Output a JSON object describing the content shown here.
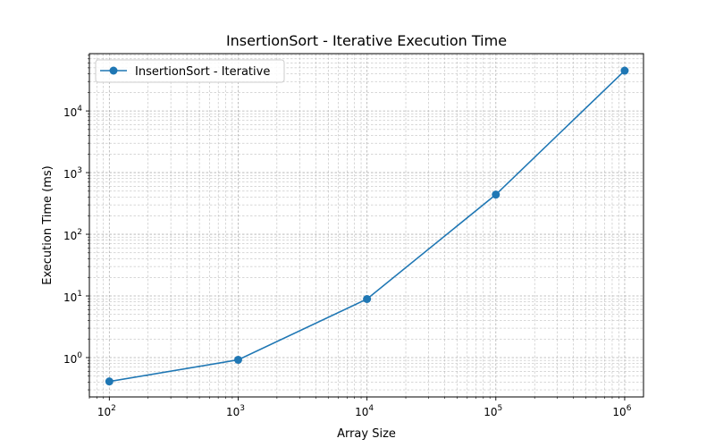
{
  "chart_data": {
    "type": "line",
    "title": "InsertionSort - Iterative Execution Time",
    "xlabel": "Array Size",
    "ylabel": "Execution Time (ms)",
    "xscale": "log",
    "yscale": "log",
    "xlim": [
      70,
      1400000
    ],
    "ylim": [
      0.23,
      85000
    ],
    "grid": true,
    "legend_position": "top-left",
    "x_ticks": [
      {
        "value": 100,
        "base": "10",
        "exp": "2"
      },
      {
        "value": 1000,
        "base": "10",
        "exp": "3"
      },
      {
        "value": 10000,
        "base": "10",
        "exp": "4"
      },
      {
        "value": 100000,
        "base": "10",
        "exp": "5"
      },
      {
        "value": 1000000,
        "base": "10",
        "exp": "6"
      }
    ],
    "y_ticks": [
      {
        "value": 1,
        "base": "10",
        "exp": "0"
      },
      {
        "value": 10,
        "base": "10",
        "exp": "1"
      },
      {
        "value": 100,
        "base": "10",
        "exp": "2"
      },
      {
        "value": 1000,
        "base": "10",
        "exp": "3"
      },
      {
        "value": 10000,
        "base": "10",
        "exp": "4"
      }
    ],
    "x": [
      100,
      1000,
      10000,
      100000,
      1000000
    ],
    "series": [
      {
        "name": "InsertionSort - Iterative",
        "color": "#1f77b4",
        "marker": "circle",
        "values": [
          0.41,
          0.92,
          8.9,
          440,
          45000
        ]
      }
    ]
  }
}
